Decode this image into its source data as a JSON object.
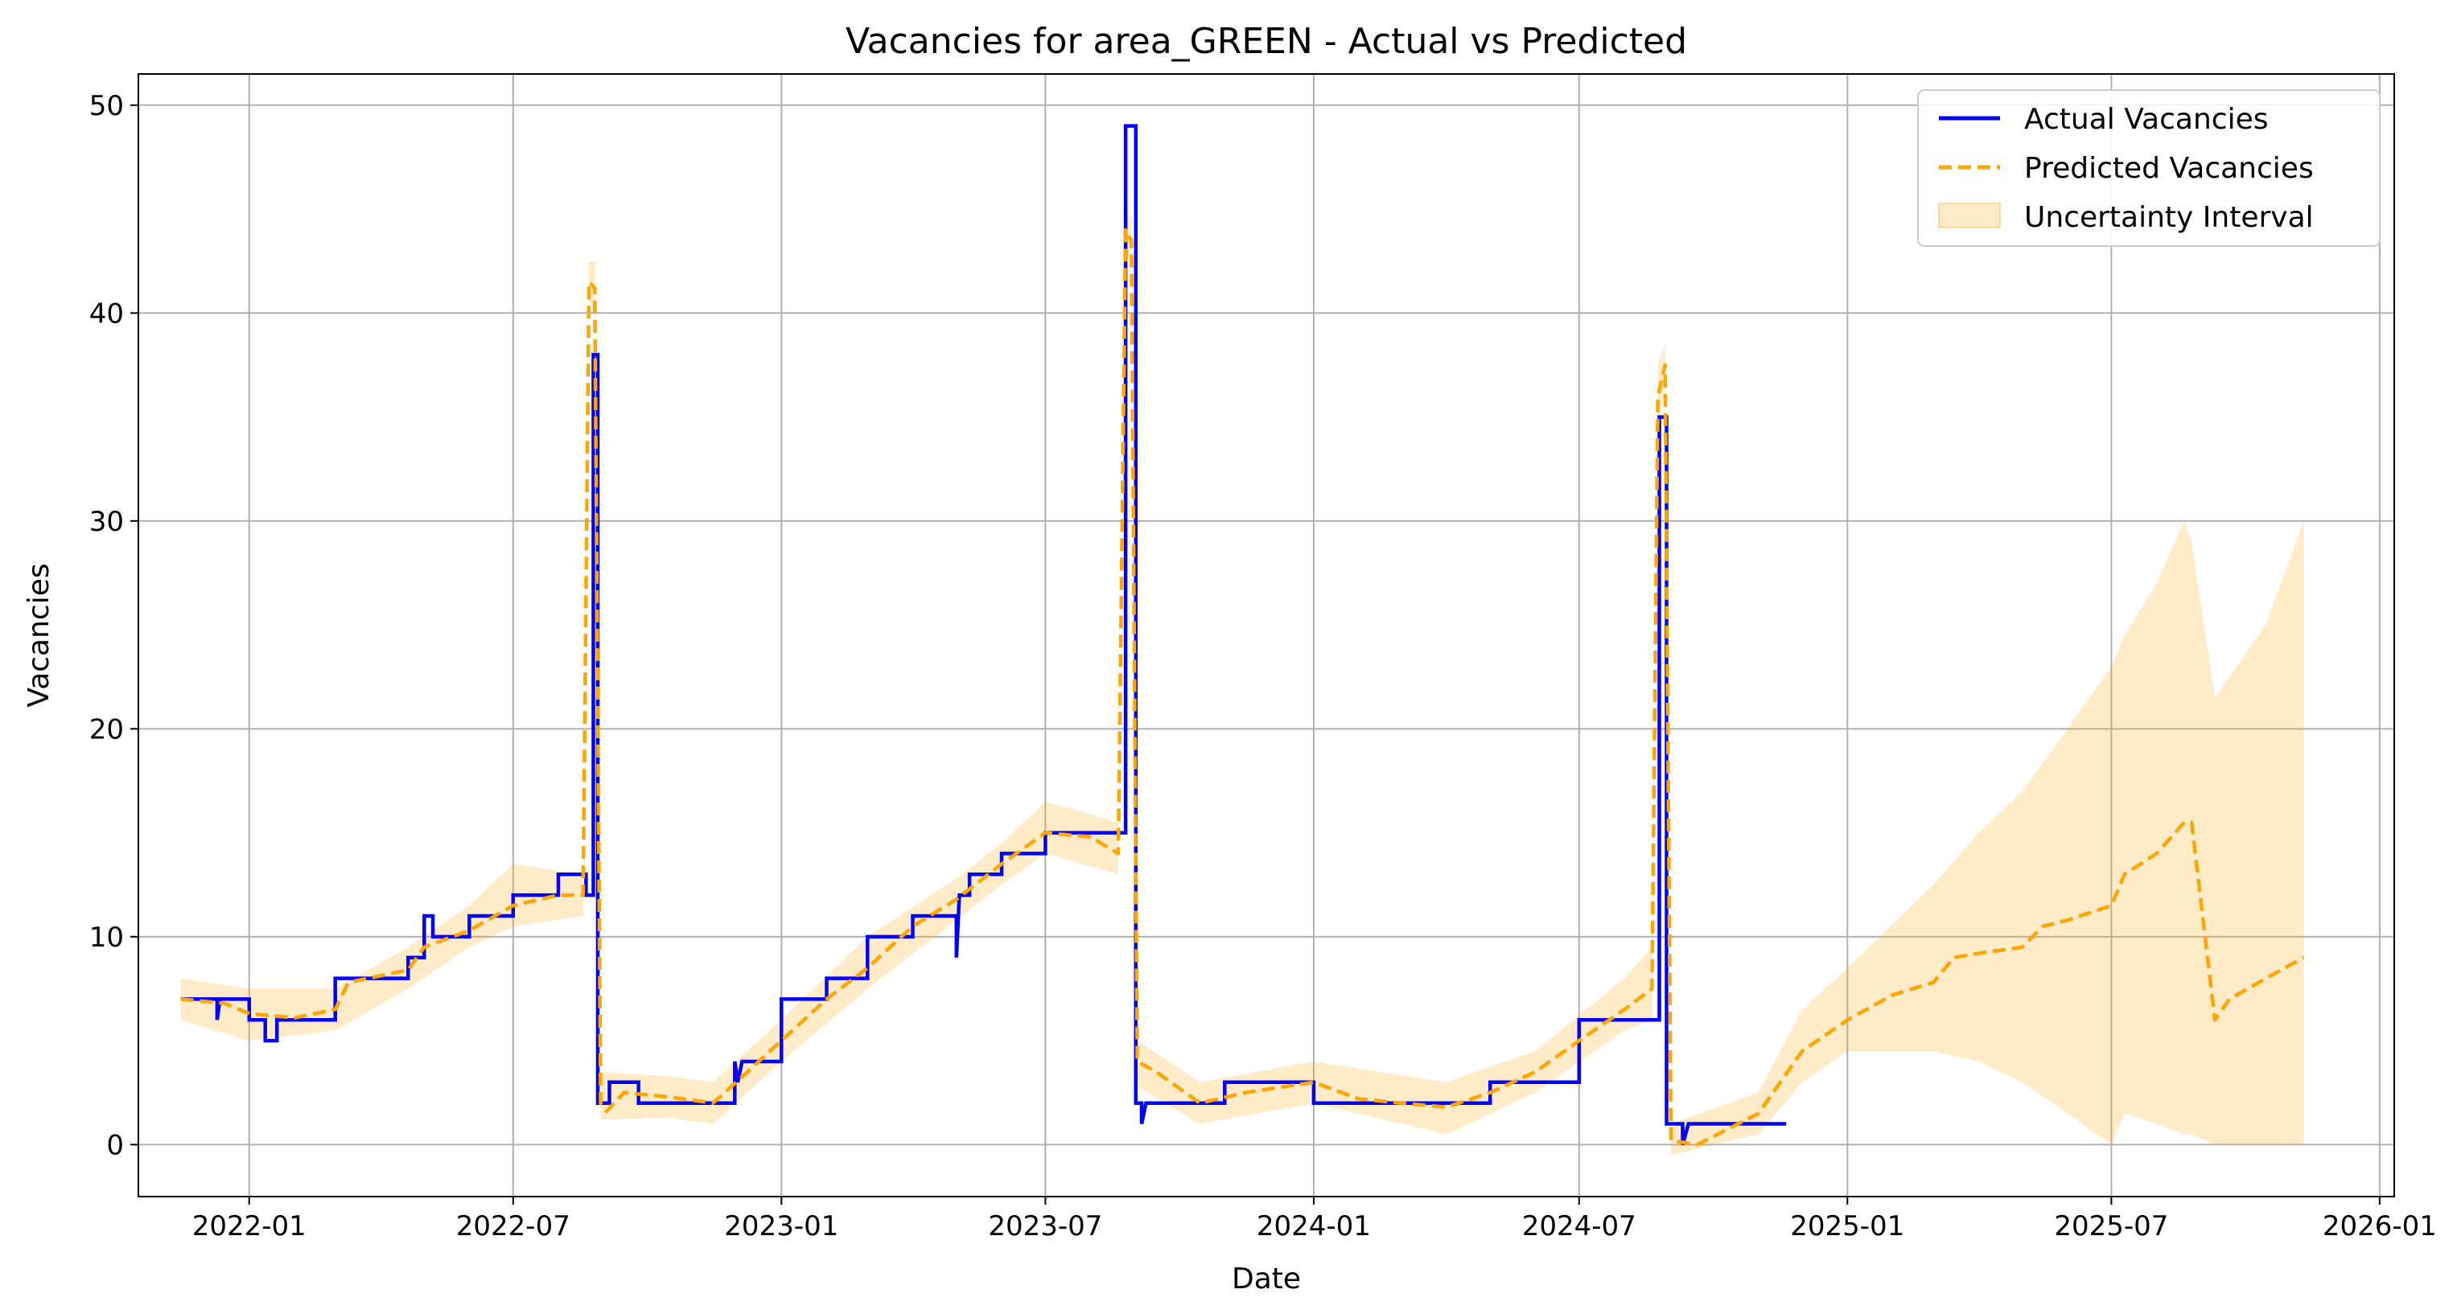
{
  "chart_data": {
    "type": "line",
    "title": "Vacancies for area_GREEN - Actual vs Predicted",
    "xlabel": "Date",
    "ylabel": "Vacancies",
    "x_range": [
      "2021-10-17",
      "2026-01-11"
    ],
    "ylim": [
      -2.5,
      51.5
    ],
    "x_ticks": [
      "2022-01",
      "2022-07",
      "2023-01",
      "2023-07",
      "2024-01",
      "2024-07",
      "2025-01",
      "2025-07",
      "2026-01"
    ],
    "y_ticks": [
      0,
      10,
      20,
      30,
      40,
      50
    ],
    "grid": true,
    "legend": "top-right",
    "colors": {
      "actual": "#0000ff",
      "predicted": "#ffa500",
      "band": "#ffa500"
    },
    "series": [
      {
        "name": "Actual Vacancies",
        "style": "solid",
        "color": "#0000ff",
        "points": [
          [
            "2021-11-15",
            7
          ],
          [
            "2021-12-10",
            7
          ],
          [
            "2021-12-10",
            6
          ],
          [
            "2021-12-12",
            7
          ],
          [
            "2022-01-01",
            7
          ],
          [
            "2022-01-01",
            6
          ],
          [
            "2022-01-12",
            6
          ],
          [
            "2022-01-12",
            5
          ],
          [
            "2022-01-20",
            5
          ],
          [
            "2022-01-20",
            6
          ],
          [
            "2022-03-01",
            6
          ],
          [
            "2022-03-01",
            8
          ],
          [
            "2022-04-20",
            8
          ],
          [
            "2022-04-20",
            9
          ],
          [
            "2022-05-01",
            9
          ],
          [
            "2022-05-01",
            11
          ],
          [
            "2022-05-07",
            11
          ],
          [
            "2022-05-07",
            10
          ],
          [
            "2022-06-01",
            10
          ],
          [
            "2022-06-01",
            11
          ],
          [
            "2022-07-01",
            11
          ],
          [
            "2022-07-01",
            12
          ],
          [
            "2022-08-01",
            12
          ],
          [
            "2022-08-01",
            13
          ],
          [
            "2022-08-20",
            13
          ],
          [
            "2022-08-20",
            12
          ],
          [
            "2022-08-25",
            12
          ],
          [
            "2022-08-25",
            38
          ],
          [
            "2022-08-28",
            38
          ],
          [
            "2022-08-28",
            2
          ],
          [
            "2022-09-05",
            2
          ],
          [
            "2022-09-05",
            3
          ],
          [
            "2022-09-25",
            3
          ],
          [
            "2022-09-25",
            2
          ],
          [
            "2022-11-30",
            2
          ],
          [
            "2022-11-30",
            4
          ],
          [
            "2022-12-02",
            3
          ],
          [
            "2022-12-05",
            4
          ],
          [
            "2023-01-01",
            4
          ],
          [
            "2023-01-01",
            7
          ],
          [
            "2023-02-01",
            7
          ],
          [
            "2023-02-01",
            8
          ],
          [
            "2023-03-01",
            8
          ],
          [
            "2023-03-01",
            10
          ],
          [
            "2023-04-01",
            10
          ],
          [
            "2023-04-01",
            11
          ],
          [
            "2023-05-01",
            11
          ],
          [
            "2023-05-01",
            9
          ],
          [
            "2023-05-03",
            12
          ],
          [
            "2023-05-10",
            12
          ],
          [
            "2023-05-10",
            13
          ],
          [
            "2023-06-01",
            13
          ],
          [
            "2023-06-01",
            14
          ],
          [
            "2023-07-01",
            14
          ],
          [
            "2023-07-01",
            15
          ],
          [
            "2023-08-25",
            15
          ],
          [
            "2023-08-25",
            49
          ],
          [
            "2023-09-01",
            49
          ],
          [
            "2023-09-01",
            2
          ],
          [
            "2023-09-05",
            2
          ],
          [
            "2023-09-05",
            1
          ],
          [
            "2023-09-08",
            2
          ],
          [
            "2023-11-01",
            2
          ],
          [
            "2023-11-01",
            3
          ],
          [
            "2024-01-01",
            3
          ],
          [
            "2024-01-01",
            2
          ],
          [
            "2024-05-01",
            2
          ],
          [
            "2024-05-01",
            3
          ],
          [
            "2024-07-01",
            3
          ],
          [
            "2024-07-01",
            6
          ],
          [
            "2024-08-25",
            6
          ],
          [
            "2024-08-25",
            35
          ],
          [
            "2024-08-30",
            35
          ],
          [
            "2024-08-30",
            1
          ],
          [
            "2024-09-10",
            1
          ],
          [
            "2024-09-10",
            0
          ],
          [
            "2024-09-14",
            1
          ],
          [
            "2024-11-20",
            1
          ]
        ]
      },
      {
        "name": "Predicted Vacancies",
        "style": "dashed",
        "color": "#ffa500",
        "points": [
          [
            "2021-11-15",
            7
          ],
          [
            "2021-12-15",
            6.8
          ],
          [
            "2022-01-01",
            6.3
          ],
          [
            "2022-02-01",
            6.1
          ],
          [
            "2022-03-01",
            6.5
          ],
          [
            "2022-03-10",
            7.8
          ],
          [
            "2022-04-20",
            8.4
          ],
          [
            "2022-05-01",
            9.5
          ],
          [
            "2022-06-01",
            10.3
          ],
          [
            "2022-07-01",
            11.5
          ],
          [
            "2022-08-01",
            12.0
          ],
          [
            "2022-08-18",
            12.0
          ],
          [
            "2022-08-22",
            41.5
          ],
          [
            "2022-08-26",
            41.2
          ],
          [
            "2022-08-30",
            2.0
          ],
          [
            "2022-09-03",
            1.6
          ],
          [
            "2022-09-15",
            2.5
          ],
          [
            "2022-10-15",
            2.3
          ],
          [
            "2022-11-15",
            2.0
          ],
          [
            "2022-12-01",
            3.0
          ],
          [
            "2023-01-01",
            5.0
          ],
          [
            "2023-02-01",
            7.0
          ],
          [
            "2023-03-01",
            8.5
          ],
          [
            "2023-04-01",
            10.5
          ],
          [
            "2023-05-01",
            11.8
          ],
          [
            "2023-06-01",
            13.5
          ],
          [
            "2023-07-01",
            15.0
          ],
          [
            "2023-08-01",
            14.8
          ],
          [
            "2023-08-20",
            14.0
          ],
          [
            "2023-08-25",
            44.0
          ],
          [
            "2023-08-29",
            43.5
          ],
          [
            "2023-09-02",
            4.0
          ],
          [
            "2023-09-15",
            3.5
          ],
          [
            "2023-10-15",
            2.0
          ],
          [
            "2023-11-15",
            2.5
          ],
          [
            "2024-01-01",
            3.0
          ],
          [
            "2024-02-01",
            2.2
          ],
          [
            "2024-03-01",
            2.0
          ],
          [
            "2024-04-01",
            1.8
          ],
          [
            "2024-05-01",
            2.5
          ],
          [
            "2024-06-01",
            3.5
          ],
          [
            "2024-07-01",
            5.0
          ],
          [
            "2024-08-01",
            6.5
          ],
          [
            "2024-08-20",
            7.5
          ],
          [
            "2024-08-24",
            36.0
          ],
          [
            "2024-08-29",
            37.5
          ],
          [
            "2024-09-02",
            0.2
          ],
          [
            "2024-09-20",
            0.0
          ],
          [
            "2024-11-01",
            1.5
          ],
          [
            "2024-12-01",
            4.5
          ],
          [
            "2025-01-01",
            6.0
          ],
          [
            "2025-02-01",
            7.2
          ],
          [
            "2025-03-01",
            7.8
          ],
          [
            "2025-03-15",
            9.0
          ],
          [
            "2025-04-01",
            9.2
          ],
          [
            "2025-05-01",
            9.5
          ],
          [
            "2025-05-15",
            10.5
          ],
          [
            "2025-06-01",
            10.8
          ],
          [
            "2025-07-01",
            11.5
          ],
          [
            "2025-07-10",
            13.0
          ],
          [
            "2025-08-01",
            14.0
          ],
          [
            "2025-08-20",
            15.5
          ],
          [
            "2025-08-25",
            15.5
          ],
          [
            "2025-09-10",
            6.0
          ],
          [
            "2025-09-20",
            7.0
          ],
          [
            "2025-10-15",
            8.0
          ],
          [
            "2025-11-10",
            9.0
          ]
        ]
      },
      {
        "name": "Uncertainty Interval",
        "style": "band",
        "color": "#ffa500",
        "band": [
          [
            "2021-11-15",
            6,
            8
          ],
          [
            "2022-01-01",
            5,
            7.5
          ],
          [
            "2022-03-01",
            5.5,
            7.5
          ],
          [
            "2022-04-20",
            7.5,
            9.5
          ],
          [
            "2022-06-01",
            9.5,
            11.5
          ],
          [
            "2022-07-01",
            10.5,
            13.5
          ],
          [
            "2022-08-18",
            11,
            13
          ],
          [
            "2022-08-22",
            40.5,
            42.5
          ],
          [
            "2022-08-26",
            40,
            42.5
          ],
          [
            "2022-08-30",
            1.2,
            3.5
          ],
          [
            "2022-10-15",
            1.3,
            3.3
          ],
          [
            "2022-11-15",
            1,
            3
          ],
          [
            "2023-01-01",
            4,
            6
          ],
          [
            "2023-03-01",
            7.5,
            10
          ],
          [
            "2023-05-01",
            10.8,
            12.8
          ],
          [
            "2023-06-01",
            12.5,
            14.5
          ],
          [
            "2023-07-01",
            14,
            16.5
          ],
          [
            "2023-08-20",
            13,
            15.5
          ],
          [
            "2023-08-25",
            43,
            45
          ],
          [
            "2023-08-29",
            42.5,
            44.5
          ],
          [
            "2023-09-02",
            2.8,
            5
          ],
          [
            "2023-10-15",
            1,
            3
          ],
          [
            "2024-01-01",
            2,
            4
          ],
          [
            "2024-04-01",
            0.5,
            3
          ],
          [
            "2024-06-01",
            2.5,
            4.5
          ],
          [
            "2024-08-01",
            5.5,
            8
          ],
          [
            "2024-08-20",
            6,
            9.5
          ],
          [
            "2024-08-24",
            35,
            37.5
          ],
          [
            "2024-08-29",
            36.5,
            38.5
          ],
          [
            "2024-09-02",
            -0.5,
            1
          ],
          [
            "2024-11-01",
            0.5,
            2.5
          ],
          [
            "2024-12-01",
            3,
            6.5
          ],
          [
            "2025-01-01",
            4.5,
            8.5
          ],
          [
            "2025-03-01",
            4.5,
            12.5
          ],
          [
            "2025-04-01",
            4,
            15
          ],
          [
            "2025-05-01",
            3,
            17
          ],
          [
            "2025-06-01",
            1.5,
            20
          ],
          [
            "2025-07-01",
            0,
            23
          ],
          [
            "2025-07-10",
            1.5,
            24.5
          ],
          [
            "2025-08-01",
            1,
            27
          ],
          [
            "2025-08-20",
            0.5,
            30
          ],
          [
            "2025-08-25",
            0.5,
            29
          ],
          [
            "2025-09-10",
            0,
            21.5
          ],
          [
            "2025-10-15",
            0,
            25
          ],
          [
            "2025-11-10",
            0,
            30
          ]
        ]
      }
    ]
  }
}
